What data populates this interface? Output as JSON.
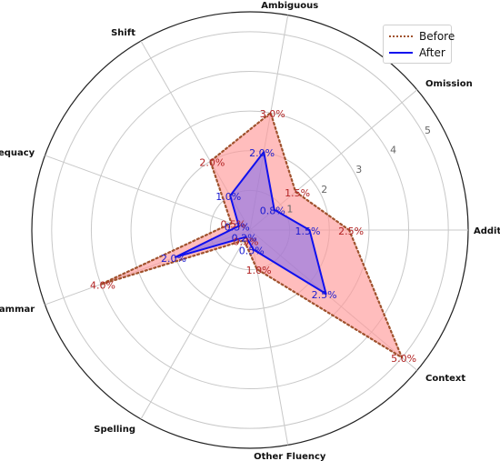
{
  "chart_data": {
    "type": "radar",
    "categories": [
      "Addition",
      "Omission",
      "Ambiguous",
      "Shift",
      "Other Adequacy",
      "Grammar",
      "Spelling",
      "Other Fluency",
      "Context"
    ],
    "radial_ticks": [
      "1",
      "2",
      "3",
      "4",
      "5"
    ],
    "rlim": [
      0,
      5.5
    ],
    "grid": true,
    "legend_position": "top-right",
    "series": [
      {
        "name": "Before",
        "values": [
          2.5,
          1.5,
          3.0,
          2.0,
          0.5,
          4.0,
          0.3,
          1.0,
          5.0
        ],
        "labels": [
          "2.5%",
          "1.5%",
          "3.0%",
          "2.0%",
          "0.5%",
          "4.0%",
          "0.3%",
          "1.0%",
          "5.0%"
        ],
        "color": "#a0522d",
        "fill": "#ff9999",
        "style": "dotted"
      },
      {
        "name": "After",
        "values": [
          1.5,
          0.8,
          2.0,
          1.0,
          0.3,
          2.0,
          0.2,
          0.5,
          2.5
        ],
        "labels": [
          "1.5%",
          "0.8%",
          "2.0%",
          "1.0%",
          "0.3%",
          "2.0%",
          "0.2%",
          "0.5%",
          "2.5%"
        ],
        "color": "#1010ee",
        "fill": "#7b68ee",
        "style": "solid"
      }
    ]
  }
}
